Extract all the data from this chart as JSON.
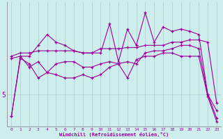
{
  "xlabel": "Windchill (Refroidissement éolien,°C)",
  "background_color": "#ceeeed",
  "grid_color": "#aacccc",
  "line_color": "#990099",
  "x_ticks": [
    0,
    1,
    2,
    3,
    4,
    5,
    6,
    7,
    8,
    9,
    10,
    11,
    12,
    13,
    14,
    15,
    16,
    17,
    18,
    19,
    20,
    21,
    22,
    23
  ],
  "y_tick_val": 5,
  "series": {
    "line_noisy": [
      3.0,
      8.5,
      8.5,
      9.5,
      10.5,
      9.8,
      9.5,
      9.0,
      8.8,
      8.8,
      8.8,
      11.5,
      8.0,
      11.0,
      9.5,
      12.5,
      9.8,
      11.2,
      10.8,
      11.0,
      10.8,
      10.5,
      5.0,
      3.5
    ],
    "line_flat": [
      8.5,
      8.8,
      8.8,
      9.0,
      9.0,
      9.0,
      9.0,
      9.0,
      8.8,
      8.8,
      9.2,
      9.2,
      9.2,
      9.3,
      9.3,
      9.5,
      9.5,
      9.5,
      9.8,
      9.8,
      10.0,
      10.0,
      9.8,
      4.2
    ],
    "line_mid": [
      8.3,
      8.5,
      7.5,
      8.0,
      7.0,
      7.8,
      8.0,
      8.0,
      7.5,
      7.5,
      7.8,
      8.0,
      7.8,
      8.0,
      7.8,
      8.8,
      9.0,
      9.0,
      9.2,
      9.5,
      9.5,
      9.2,
      5.0,
      2.8
    ],
    "line_diag": [
      3.0,
      8.3,
      7.8,
      6.5,
      7.0,
      6.8,
      6.5,
      6.5,
      6.8,
      6.5,
      6.8,
      7.5,
      7.8,
      6.5,
      8.2,
      8.5,
      8.5,
      8.8,
      8.8,
      8.5,
      8.5,
      8.5,
      4.8,
      2.5
    ]
  },
  "xlim": [
    -0.5,
    23.5
  ],
  "ylim": [
    2.0,
    13.5
  ]
}
